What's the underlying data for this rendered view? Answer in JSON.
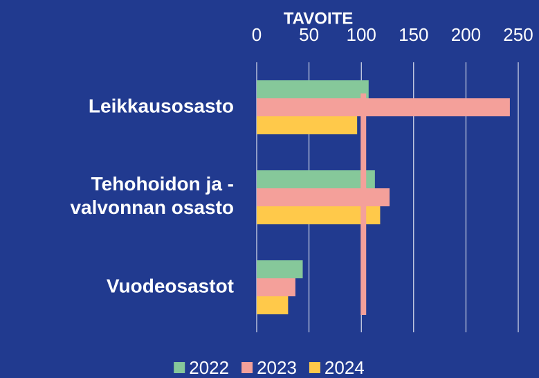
{
  "chart_data": {
    "type": "barh",
    "categories": [
      "Leikkausosasto",
      "Tehohoidon ja - valvonnan osasto",
      "Vuodeosastot"
    ],
    "series": [
      {
        "name": "2022",
        "color": "#86c89a",
        "values": [
          107,
          113,
          44
        ]
      },
      {
        "name": "2023",
        "color": "#f4a09a",
        "values": [
          242,
          127,
          37
        ]
      },
      {
        "name": "2024",
        "color": "#ffc94a",
        "values": [
          96,
          118,
          30
        ]
      }
    ],
    "target": {
      "label": "TAVOITE",
      "value": 102
    },
    "xlim": [
      0,
      250
    ],
    "xticks": [
      0,
      50,
      100,
      150,
      200,
      250
    ],
    "grid": true,
    "legend": "bottom"
  }
}
